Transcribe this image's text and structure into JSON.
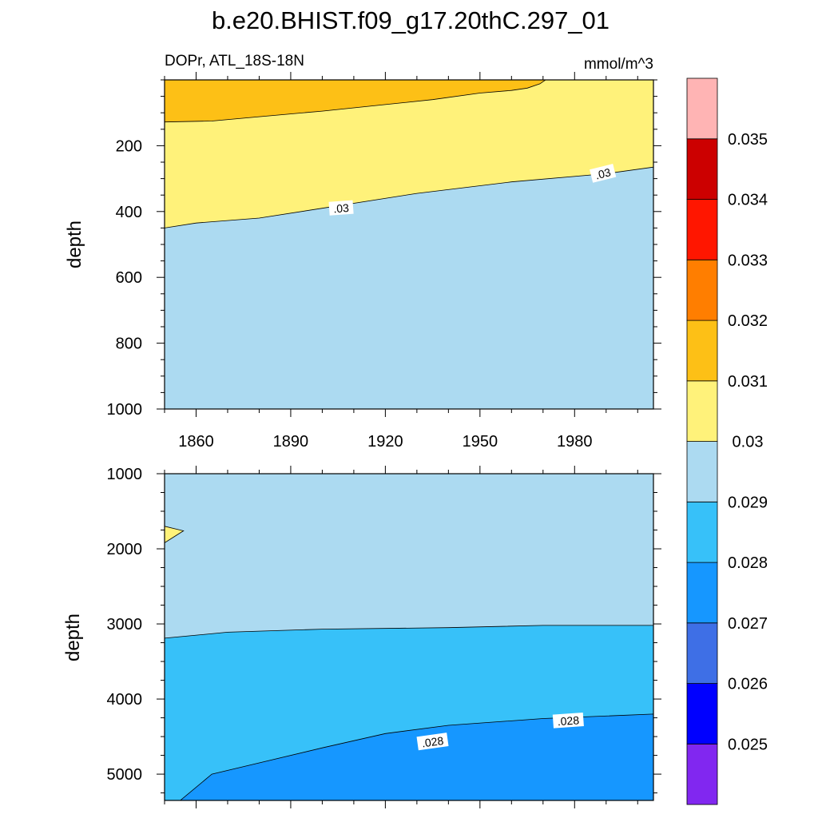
{
  "chart_data": {
    "type": "contour",
    "title": "b.e20.BHIST.f09_g17.20thC.297_01",
    "left_label": "DOPr, ATL_18S-18N",
    "right_label": "mmol/m^3",
    "ylabel": "depth",
    "x_tick_labels": [
      "1860",
      "1890",
      "1920",
      "1950",
      "1980"
    ],
    "x_ticks": [
      1860,
      1890,
      1920,
      1950,
      1980
    ],
    "xlim": [
      1850,
      2005
    ],
    "colorbar": {
      "levels": [
        0.025,
        0.026,
        0.027,
        0.028,
        0.029,
        0.03,
        0.031,
        0.032,
        0.033,
        0.034,
        0.035
      ],
      "labels": [
        "0.025",
        "0.026",
        "0.027",
        "0.028",
        "0.029",
        "0.03",
        "0.031",
        "0.032",
        "0.033",
        "0.034",
        "0.035"
      ],
      "colors": [
        "#8127f0",
        "#0000ff",
        "#3e6fe6",
        "#1697ff",
        "#37c1f9",
        "#acdaf1",
        "#fff27a",
        "#fdc016",
        "#ff7e00",
        "#ff1600",
        "#cc0000",
        "#ffb4b4"
      ]
    },
    "panels": [
      {
        "name": "upper",
        "ylim": [
          0,
          1000
        ],
        "y_reversed": true,
        "y_ticks": [
          200,
          400,
          600,
          800,
          1000
        ],
        "y_tick_labels": [
          "200",
          "400",
          "600",
          "800",
          "1000"
        ],
        "base_color": "#acdaf1",
        "regions": [
          {
            "color": "#fff27a",
            "polygon": [
              [
                1850,
                0
              ],
              [
                2005,
                0
              ],
              [
                2005,
                265
              ],
              [
                1990,
                285
              ],
              [
                1960,
                310
              ],
              [
                1930,
                345
              ],
              [
                1900,
                390
              ],
              [
                1880,
                420
              ],
              [
                1860,
                435
              ],
              [
                1850,
                450
              ]
            ]
          },
          {
            "color": "#fdc016",
            "polygon": [
              [
                1850,
                0
              ],
              [
                1970.8,
                0
              ],
              [
                1969,
                12
              ],
              [
                1965,
                25
              ],
              [
                1960,
                32
              ],
              [
                1950,
                40
              ],
              [
                1935,
                60
              ],
              [
                1920,
                75
              ],
              [
                1900,
                95
              ],
              [
                1880,
                112
              ],
              [
                1865,
                125
              ],
              [
                1850,
                128
              ]
            ]
          }
        ],
        "contour_labels": [
          {
            "text": ".03",
            "x": 1906,
            "y": 390,
            "angle": -4
          },
          {
            "text": ".03",
            "x": 1989,
            "y": 285,
            "angle": -14
          }
        ]
      },
      {
        "name": "lower",
        "ylim": [
          1000,
          5350
        ],
        "y_reversed": true,
        "y_ticks": [
          1000,
          2000,
          3000,
          4000,
          5000
        ],
        "y_tick_labels": [
          "1000",
          "2000",
          "3000",
          "4000",
          "5000"
        ],
        "base_color": "#acdaf1",
        "regions": [
          {
            "color": "#fff27a",
            "polygon": [
              [
                1850,
                1700
              ],
              [
                1856,
                1760
              ],
              [
                1850,
                1920
              ]
            ]
          },
          {
            "color": "#37c1f9",
            "polygon": [
              [
                2005,
                3020
              ],
              [
                1970,
                3020
              ],
              [
                1940,
                3050
              ],
              [
                1900,
                3070
              ],
              [
                1870,
                3110
              ],
              [
                1850,
                3190
              ],
              [
                1850,
                5350
              ],
              [
                2005,
                5350
              ]
            ]
          },
          {
            "color": "#1697ff",
            "polygon": [
              [
                2005,
                4200
              ],
              [
                1970,
                4260
              ],
              [
                1940,
                4350
              ],
              [
                1920,
                4460
              ],
              [
                1900,
                4650
              ],
              [
                1880,
                4850
              ],
              [
                1865,
                5000
              ],
              [
                1855,
                5350
              ],
              [
                2005,
                5350
              ]
            ]
          }
        ],
        "contour_labels": [
          {
            "text": ".028",
            "x": 1935,
            "y": 4570,
            "angle": -8
          },
          {
            "text": ".028",
            "x": 1978,
            "y": 4290,
            "angle": -4
          }
        ]
      }
    ]
  }
}
